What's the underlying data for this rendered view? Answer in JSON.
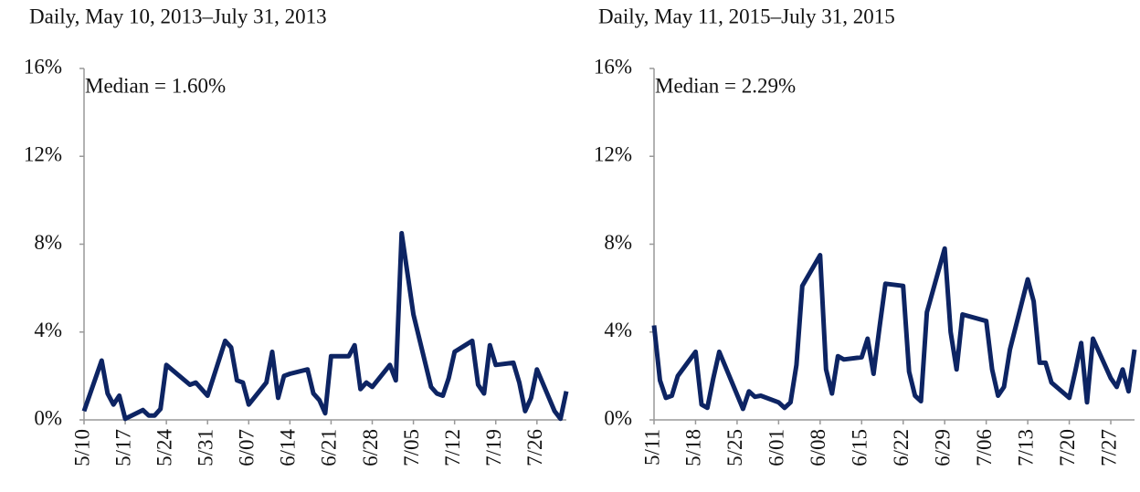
{
  "chart_data": [
    {
      "type": "line",
      "title": "Daily, May 10, 2013–July 31, 2013",
      "annotation": "Median = 1.60%",
      "x": [
        "5/10",
        "5/13",
        "5/14",
        "5/15",
        "5/16",
        "5/17",
        "5/20",
        "5/21",
        "5/22",
        "5/23",
        "5/24",
        "5/28",
        "5/29",
        "5/30",
        "5/31",
        "6/03",
        "6/04",
        "6/05",
        "6/06",
        "6/07",
        "6/10",
        "6/11",
        "6/12",
        "6/13",
        "6/14",
        "6/17",
        "6/18",
        "6/19",
        "6/20",
        "6/21",
        "6/24",
        "6/25",
        "6/26",
        "6/27",
        "6/28",
        "7/01",
        "7/02",
        "7/03",
        "7/05",
        "7/08",
        "7/09",
        "7/10",
        "7/11",
        "7/12",
        "7/15",
        "7/16",
        "7/17",
        "7/18",
        "7/19",
        "7/22",
        "7/23",
        "7/24",
        "7/25",
        "7/26",
        "7/29",
        "7/30",
        "7/31"
      ],
      "series": [
        {
          "color": "#0d2463",
          "values": [
            0.4,
            2.7,
            1.2,
            0.7,
            1.1,
            0.05,
            0.45,
            0.2,
            0.2,
            0.5,
            2.5,
            1.6,
            1.7,
            1.4,
            1.1,
            3.6,
            3.3,
            1.8,
            1.7,
            0.7,
            1.7,
            3.1,
            1.0,
            2.0,
            2.1,
            2.3,
            1.2,
            0.9,
            0.3,
            2.9,
            2.9,
            3.4,
            1.4,
            1.7,
            1.5,
            2.5,
            1.8,
            8.5,
            4.8,
            1.5,
            1.2,
            1.1,
            1.9,
            3.1,
            3.6,
            1.6,
            1.2,
            3.4,
            2.5,
            2.6,
            1.7,
            0.4,
            1.0,
            2.3,
            0.4,
            0.05,
            1.3
          ]
        }
      ],
      "xlim": [
        "5/10",
        "7/31"
      ],
      "xticks": [
        "5/10",
        "5/17",
        "5/24",
        "5/31",
        "6/07",
        "6/14",
        "6/21",
        "6/28",
        "7/05",
        "7/12",
        "7/19",
        "7/26"
      ],
      "ylim": [
        0,
        16
      ],
      "yticks": [
        {
          "value": 0,
          "label": "0%"
        },
        {
          "value": 4,
          "label": "4%"
        },
        {
          "value": 8,
          "label": "8%"
        },
        {
          "value": 12,
          "label": "12%"
        },
        {
          "value": 16,
          "label": "16%"
        }
      ]
    },
    {
      "type": "line",
      "title": "Daily, May 11, 2015–July 31, 2015",
      "annotation": "Median = 2.29%",
      "x": [
        "5/11",
        "5/12",
        "5/13",
        "5/14",
        "5/15",
        "5/18",
        "5/19",
        "5/20",
        "5/21",
        "5/22",
        "5/26",
        "5/27",
        "5/28",
        "5/29",
        "6/01",
        "6/02",
        "6/03",
        "6/04",
        "6/05",
        "6/08",
        "6/09",
        "6/10",
        "6/11",
        "6/12",
        "6/15",
        "6/16",
        "6/17",
        "6/18",
        "6/19",
        "6/22",
        "6/23",
        "6/24",
        "6/25",
        "6/26",
        "6/29",
        "6/30",
        "7/01",
        "7/02",
        "7/06",
        "7/07",
        "7/08",
        "7/09",
        "7/10",
        "7/13",
        "7/14",
        "7/15",
        "7/16",
        "7/17",
        "7/20",
        "7/21",
        "7/22",
        "7/23",
        "7/24",
        "7/27",
        "7/28",
        "7/29",
        "7/30",
        "7/31"
      ],
      "series": [
        {
          "color": "#0d2463",
          "values": [
            4.3,
            1.8,
            1.0,
            1.1,
            2.0,
            3.1,
            0.7,
            0.55,
            1.9,
            3.1,
            0.5,
            1.3,
            1.05,
            1.1,
            0.8,
            0.55,
            0.8,
            2.5,
            6.1,
            7.5,
            2.3,
            1.2,
            2.9,
            2.75,
            2.85,
            3.7,
            2.1,
            4.2,
            6.2,
            6.1,
            2.2,
            1.1,
            0.85,
            4.9,
            7.8,
            4.0,
            2.3,
            4.8,
            4.5,
            2.3,
            1.1,
            1.5,
            3.2,
            6.4,
            5.4,
            2.6,
            2.6,
            1.7,
            1.0,
            2.2,
            3.5,
            0.8,
            3.7,
            1.9,
            1.5,
            2.3,
            1.3,
            3.2
          ]
        }
      ],
      "xlim": [
        "5/11",
        "7/31"
      ],
      "xticks": [
        "5/11",
        "5/18",
        "5/25",
        "6/01",
        "6/08",
        "6/15",
        "6/22",
        "6/29",
        "7/06",
        "7/13",
        "7/20",
        "7/27"
      ],
      "ylim": [
        0,
        16
      ],
      "yticks": [
        {
          "value": 0,
          "label": "0%"
        },
        {
          "value": 4,
          "label": "4%"
        },
        {
          "value": 8,
          "label": "8%"
        },
        {
          "value": 12,
          "label": "12%"
        },
        {
          "value": 16,
          "label": "16%"
        }
      ]
    }
  ]
}
